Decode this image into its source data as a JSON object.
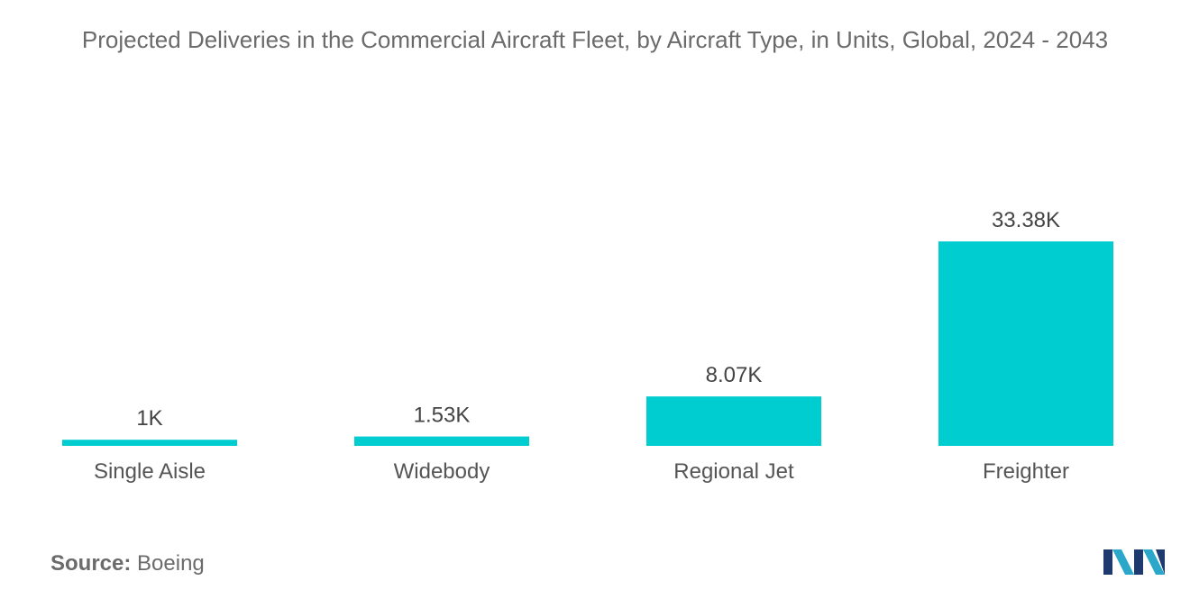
{
  "chart_data": {
    "type": "bar",
    "title": "Projected Deliveries in the Commercial Aircraft Fleet, by Aircraft Type, in Units, Global, 2024 - 2043",
    "categories": [
      "Single Aisle",
      "Widebody",
      "Regional Jet",
      "Freighter"
    ],
    "values": [
      1.0,
      1.53,
      8.07,
      33.38
    ],
    "value_labels": [
      "1K",
      "1.53K",
      "8.07K",
      "33.38K"
    ],
    "unit": "K",
    "xlabel": "",
    "ylabel": "",
    "ylim": [
      0,
      33.38
    ],
    "grid": false,
    "bar_color": "#00CDD0"
  },
  "source": {
    "label": "Source:",
    "value": "Boeing"
  },
  "logo": {
    "icon": "mordor-intelligence-logo-icon",
    "colors": [
      "#1e3a6e",
      "#2aa7c9"
    ]
  }
}
